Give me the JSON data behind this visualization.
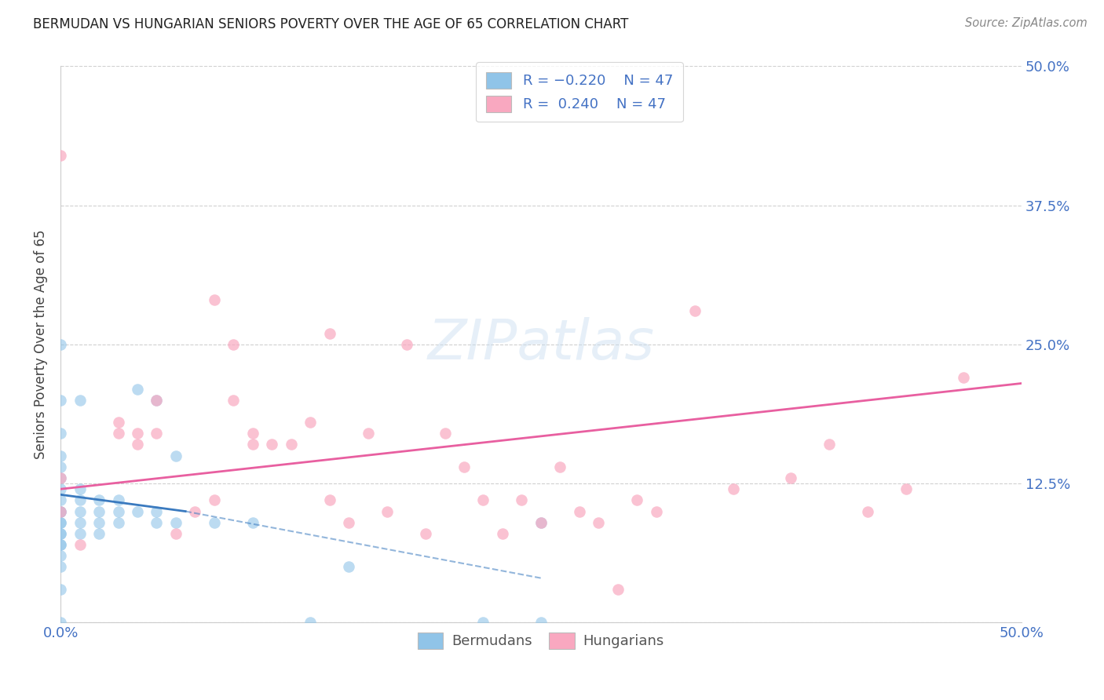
{
  "title": "BERMUDAN VS HUNGARIAN SENIORS POVERTY OVER THE AGE OF 65 CORRELATION CHART",
  "source": "Source: ZipAtlas.com",
  "ylabel": "Seniors Poverty Over the Age of 65",
  "xlim": [
    0.0,
    0.5
  ],
  "ylim": [
    0.0,
    0.5
  ],
  "xticks": [
    0.0,
    0.125,
    0.25,
    0.375,
    0.5
  ],
  "yticks": [
    0.0,
    0.125,
    0.25,
    0.375,
    0.5
  ],
  "bermuda_color": "#90c4e8",
  "hungary_color": "#f9a8c0",
  "bermuda_trend_color": "#3a7abf",
  "hungary_trend_color": "#e85fa0",
  "bermuda_x": [
    0.0,
    0.0,
    0.0,
    0.0,
    0.0,
    0.0,
    0.0,
    0.0,
    0.0,
    0.0,
    0.0,
    0.0,
    0.0,
    0.0,
    0.0,
    0.0,
    0.0,
    0.0,
    0.0,
    0.0,
    0.01,
    0.01,
    0.01,
    0.01,
    0.01,
    0.01,
    0.02,
    0.02,
    0.02,
    0.02,
    0.03,
    0.03,
    0.03,
    0.04,
    0.04,
    0.05,
    0.05,
    0.06,
    0.08,
    0.1,
    0.13,
    0.15,
    0.22,
    0.25,
    0.25,
    0.05,
    0.06
  ],
  "bermuda_y": [
    0.0,
    0.03,
    0.05,
    0.06,
    0.07,
    0.08,
    0.09,
    0.1,
    0.1,
    0.11,
    0.12,
    0.13,
    0.14,
    0.15,
    0.17,
    0.25,
    0.07,
    0.08,
    0.09,
    0.2,
    0.08,
    0.09,
    0.1,
    0.11,
    0.12,
    0.2,
    0.08,
    0.09,
    0.1,
    0.11,
    0.09,
    0.1,
    0.11,
    0.1,
    0.21,
    0.09,
    0.1,
    0.09,
    0.09,
    0.09,
    0.0,
    0.05,
    0.0,
    0.0,
    0.09,
    0.2,
    0.15
  ],
  "hungary_x": [
    0.0,
    0.0,
    0.0,
    0.03,
    0.03,
    0.04,
    0.04,
    0.05,
    0.05,
    0.06,
    0.07,
    0.08,
    0.08,
    0.09,
    0.09,
    0.1,
    0.1,
    0.11,
    0.12,
    0.13,
    0.14,
    0.15,
    0.16,
    0.17,
    0.18,
    0.19,
    0.2,
    0.21,
    0.22,
    0.23,
    0.24,
    0.25,
    0.26,
    0.27,
    0.28,
    0.29,
    0.3,
    0.31,
    0.33,
    0.35,
    0.38,
    0.4,
    0.42,
    0.44,
    0.47,
    0.14,
    0.01
  ],
  "hungary_y": [
    0.1,
    0.13,
    0.42,
    0.17,
    0.18,
    0.16,
    0.17,
    0.17,
    0.2,
    0.08,
    0.1,
    0.11,
    0.29,
    0.2,
    0.25,
    0.16,
    0.17,
    0.16,
    0.16,
    0.18,
    0.11,
    0.09,
    0.17,
    0.1,
    0.25,
    0.08,
    0.17,
    0.14,
    0.11,
    0.08,
    0.11,
    0.09,
    0.14,
    0.1,
    0.09,
    0.03,
    0.11,
    0.1,
    0.28,
    0.12,
    0.13,
    0.16,
    0.1,
    0.12,
    0.22,
    0.26,
    0.07
  ],
  "bermuda_trend_x0": 0.0,
  "bermuda_trend_x1": 0.065,
  "bermuda_trend_x2": 0.25,
  "bermuda_trend_y0": 0.115,
  "bermuda_trend_y1": 0.1,
  "bermuda_trend_y2": 0.04,
  "hungary_trend_x0": 0.0,
  "hungary_trend_x1": 0.5,
  "hungary_trend_y0": 0.12,
  "hungary_trend_y1": 0.215
}
